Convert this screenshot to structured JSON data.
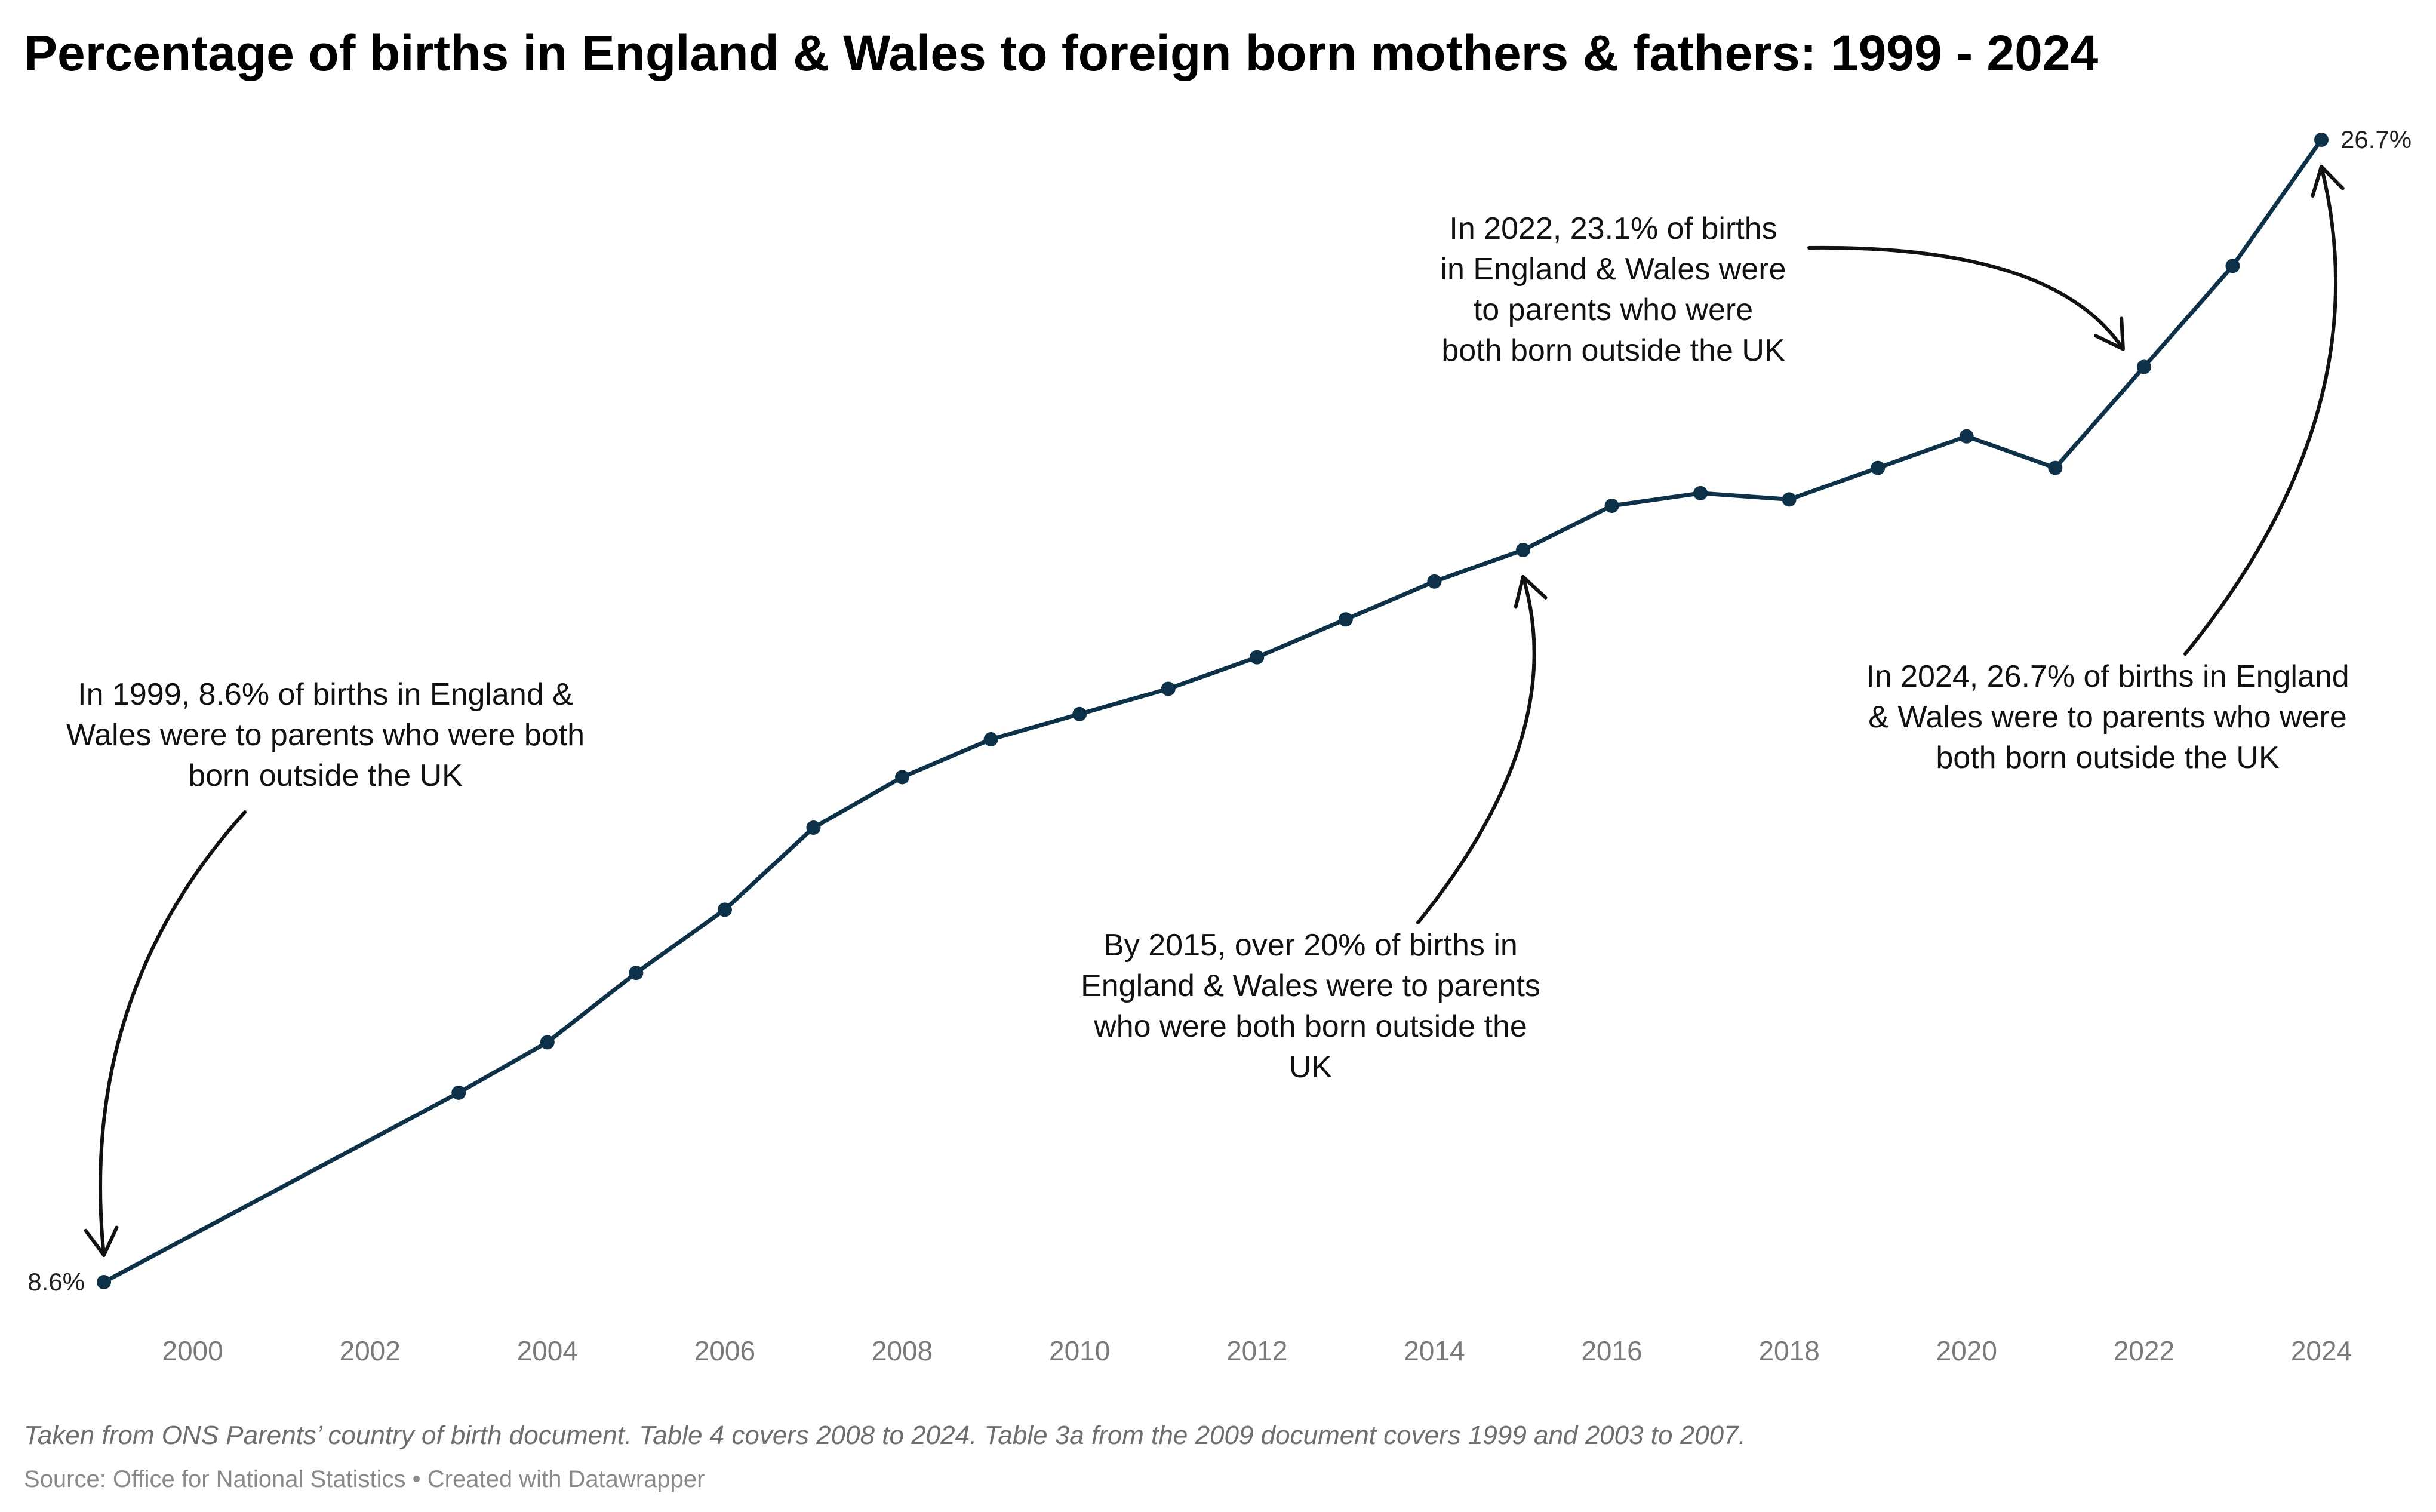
{
  "chart_data": {
    "type": "line",
    "title": "Percentage of births in England & Wales to foreign born mothers & fathers: 1999 - 2024",
    "xlabel": "",
    "ylabel": "",
    "x": [
      1999,
      2003,
      2004,
      2005,
      2006,
      2007,
      2008,
      2009,
      2010,
      2011,
      2012,
      2013,
      2014,
      2015,
      2016,
      2017,
      2018,
      2019,
      2020,
      2021,
      2022,
      2023,
      2024
    ],
    "series": [
      {
        "name": "",
        "values": [
          8.6,
          11.6,
          12.4,
          13.5,
          14.5,
          15.8,
          16.6,
          17.2,
          17.6,
          18.0,
          18.5,
          19.1,
          19.7,
          20.2,
          20.9,
          21.1,
          21.0,
          21.5,
          22.0,
          21.5,
          23.1,
          24.7,
          26.7
        ],
        "color": "#0c3148",
        "end_labels": {
          "first": "8.6%",
          "last": "26.7%"
        }
      }
    ],
    "xlim": [
      1999,
      2024
    ],
    "ylim": [
      8.6,
      26.7
    ],
    "x_ticks": [
      "2000",
      "2002",
      "2004",
      "2006",
      "2008",
      "2010",
      "2012",
      "2014",
      "2016",
      "2018",
      "2020",
      "2022",
      "2024"
    ],
    "grid": false,
    "legend": "none",
    "annotations": [
      {
        "target": [
          1999,
          8.6
        ],
        "lines": [
          "In 1999, 8.6% of births in England &",
          "Wales were to parents who were both",
          "born outside the UK"
        ]
      },
      {
        "target": [
          2015,
          20.2
        ],
        "lines": [
          "By 2015, over 20% of births in",
          "England & Wales were to parents",
          "who were both born outside the",
          "UK"
        ]
      },
      {
        "target": [
          2022,
          23.1
        ],
        "lines": [
          "In 2022, 23.1% of births",
          "in England & Wales were",
          "to parents who were",
          "both born outside the UK"
        ]
      },
      {
        "target": [
          2024,
          26.7
        ],
        "lines": [
          "In 2024, 26.7% of births in England",
          "& Wales were to parents who were",
          "both born outside the UK"
        ]
      }
    ],
    "note": "Taken from ONS Parents’ country of birth document. Table 4 covers 2008 to 2024. Table 3a from the 2009 document covers 1999 and 2003 to 2007.",
    "source": "Source: Office for National Statistics • Created with Datawrapper"
  }
}
